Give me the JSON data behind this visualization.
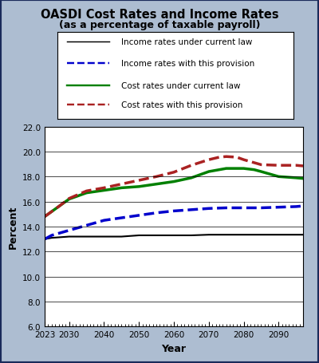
{
  "title": "OASDI Cost Rates and Income Rates",
  "subtitle": "(as a percentage of taxable payroll)",
  "xlabel": "Year",
  "ylabel": "Percent",
  "background_color": "#adbdd1",
  "plot_bg_color": "#ffffff",
  "legend_bg_color": "#ffffff",
  "outer_border_color": "#1a2a5a",
  "ylim": [
    6.0,
    22.0
  ],
  "yticks": [
    6.0,
    8.0,
    10.0,
    12.0,
    14.0,
    16.0,
    18.0,
    20.0,
    22.0
  ],
  "xlim": [
    2023,
    2097
  ],
  "xticks": [
    2023,
    2030,
    2040,
    2050,
    2060,
    2070,
    2080,
    2090
  ],
  "series_order": [
    "income_current_law",
    "income_provision",
    "cost_current_law",
    "cost_provision"
  ],
  "income_current_law": {
    "label": "Income rates under current law",
    "color": "#000000",
    "linestyle": "-",
    "linewidth": 1.5,
    "years": [
      2023,
      2025,
      2030,
      2035,
      2040,
      2045,
      2050,
      2055,
      2060,
      2065,
      2070,
      2075,
      2080,
      2085,
      2090,
      2095,
      2097
    ],
    "values": [
      13.0,
      13.1,
      13.2,
      13.2,
      13.2,
      13.2,
      13.3,
      13.3,
      13.3,
      13.3,
      13.35,
      13.35,
      13.35,
      13.35,
      13.35,
      13.35,
      13.35
    ]
  },
  "income_provision": {
    "label": "Income rates with this provision",
    "color": "#0000cc",
    "linestyle": "--",
    "linewidth": 2.5,
    "years": [
      2023,
      2025,
      2030,
      2035,
      2040,
      2045,
      2050,
      2055,
      2060,
      2065,
      2070,
      2075,
      2080,
      2085,
      2090,
      2095,
      2097
    ],
    "values": [
      13.0,
      13.3,
      13.7,
      14.1,
      14.5,
      14.7,
      14.9,
      15.1,
      15.25,
      15.35,
      15.45,
      15.5,
      15.5,
      15.5,
      15.55,
      15.6,
      15.65
    ]
  },
  "cost_current_law": {
    "label": "Cost rates under current law",
    "color": "#008000",
    "linestyle": "-",
    "linewidth": 2.5,
    "years": [
      2023,
      2025,
      2027,
      2030,
      2035,
      2040,
      2045,
      2050,
      2055,
      2060,
      2065,
      2070,
      2075,
      2080,
      2083,
      2085,
      2090,
      2095,
      2097
    ],
    "values": [
      14.8,
      15.2,
      15.6,
      16.2,
      16.7,
      16.9,
      17.1,
      17.2,
      17.4,
      17.6,
      17.9,
      18.4,
      18.65,
      18.65,
      18.55,
      18.4,
      18.0,
      17.9,
      17.85
    ]
  },
  "cost_provision": {
    "label": "Cost rates with this provision",
    "color": "#aa2222",
    "linestyle": "--",
    "linewidth": 2.5,
    "years": [
      2023,
      2025,
      2027,
      2030,
      2035,
      2040,
      2045,
      2050,
      2055,
      2060,
      2065,
      2070,
      2073,
      2075,
      2078,
      2080,
      2085,
      2090,
      2095,
      2097
    ],
    "values": [
      14.8,
      15.2,
      15.6,
      16.25,
      16.85,
      17.1,
      17.4,
      17.7,
      18.0,
      18.35,
      18.9,
      19.35,
      19.55,
      19.6,
      19.55,
      19.35,
      18.95,
      18.9,
      18.9,
      18.85
    ]
  }
}
